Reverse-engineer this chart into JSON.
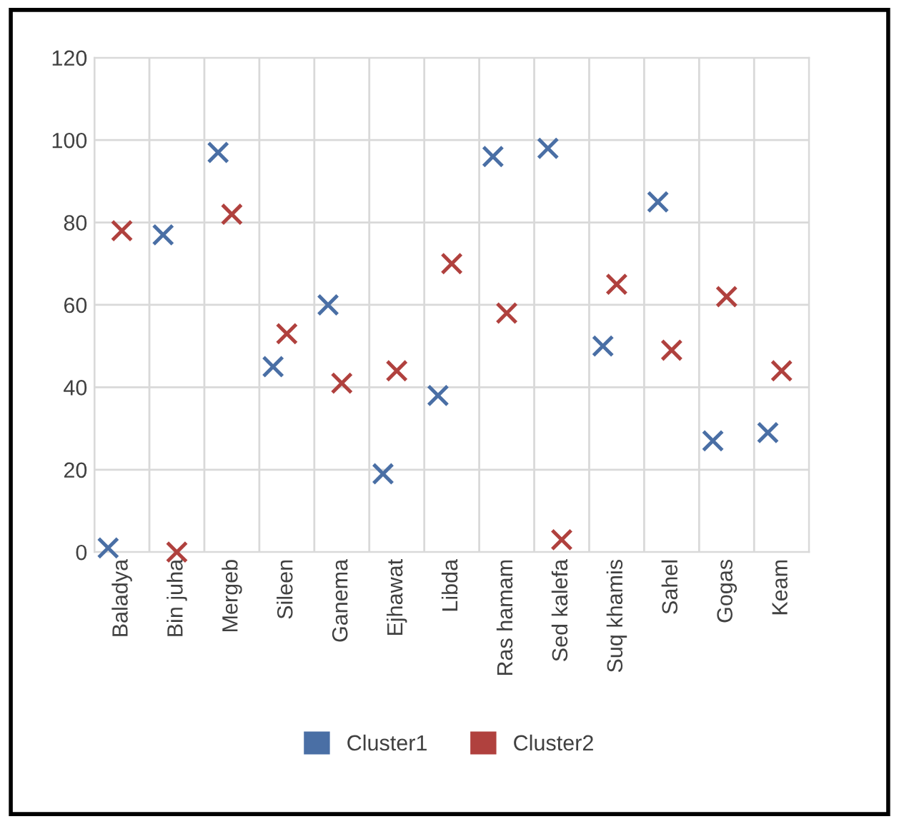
{
  "chart_data": {
    "type": "scatter",
    "categories": [
      "Baladya",
      "Bin juha",
      "Mergeb",
      "Sileen",
      "Ganema",
      "Ejhawat",
      "Libda",
      "Ras hamam",
      "Sed kalefa",
      "Suq khamis",
      "Sahel",
      "Gogas",
      "Keam"
    ],
    "series": [
      {
        "name": "Cluster1",
        "color": "#4a6fa5",
        "values": [
          1,
          77,
          97,
          45,
          60,
          19,
          38,
          96,
          98,
          50,
          85,
          27,
          29
        ]
      },
      {
        "name": "Cluster2",
        "color": "#b0413e",
        "values": [
          78,
          0,
          82,
          53,
          41,
          44,
          70,
          58,
          3,
          65,
          49,
          62,
          44
        ]
      }
    ],
    "ylim": [
      0,
      120
    ],
    "yticks": [
      0,
      20,
      40,
      60,
      80,
      100,
      120
    ],
    "grid": true,
    "legend": "bottom",
    "marker": "cross"
  }
}
